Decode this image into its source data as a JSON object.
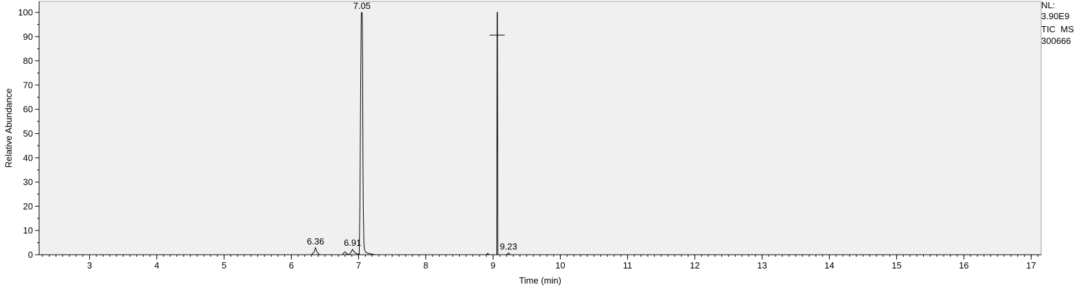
{
  "chart_data": {
    "type": "line",
    "xlabel": "Time (min)",
    "ylabel": "Relative Abundance",
    "xlim": [
      2.25,
      17.15
    ],
    "ylim": [
      0,
      100
    ],
    "xticks": [
      3,
      4,
      5,
      6,
      7,
      8,
      9,
      10,
      11,
      12,
      13,
      14,
      15,
      16,
      17
    ],
    "yticks": [
      0,
      10,
      20,
      30,
      40,
      50,
      60,
      70,
      80,
      90,
      100
    ],
    "grid": false,
    "background_color": "#f0f0f0",
    "line_color": "#000000",
    "series": [
      {
        "x": [
          2.25,
          6.3,
          6.34,
          6.36,
          6.38,
          6.42,
          6.76,
          6.78,
          6.8,
          6.82,
          6.86,
          6.88,
          6.91,
          6.94,
          6.97,
          7.01,
          7.02,
          7.03,
          7.04,
          7.045,
          7.05,
          7.055,
          7.06,
          7.065,
          7.07,
          7.08,
          7.09,
          7.11,
          7.15,
          7.25,
          8.9,
          8.92,
          8.94,
          9.055,
          9.06,
          9.065,
          9.07,
          9.2,
          9.23,
          9.26,
          17.15
        ],
        "y": [
          0,
          0,
          1.2,
          2.9,
          1.2,
          0,
          0,
          0.8,
          1.2,
          0.5,
          0,
          0.7,
          2.2,
          1.0,
          0.4,
          0.3,
          21,
          66,
          99,
          100,
          100,
          99,
          79,
          40,
          20,
          4,
          2,
          1,
          0.5,
          0,
          0,
          0.6,
          0,
          0,
          100,
          100,
          0,
          0,
          0.7,
          0,
          0
        ]
      }
    ],
    "peak_labels": [
      {
        "text": "7.05",
        "x": 7.05,
        "y": 100
      },
      {
        "text": "6.36",
        "x": 6.36,
        "y": 2.9
      },
      {
        "text": "6.91",
        "x": 6.91,
        "y": 2.2
      },
      {
        "text": "9.23",
        "x": 9.23,
        "y": 0.7
      }
    ],
    "cursor_marker": {
      "x": 9.06,
      "y": 90.6
    }
  },
  "side_info": {
    "nl_label": "NL:",
    "nl_value": "3.90E9",
    "trace_type": "TIC  MS",
    "sample_name": "300666"
  }
}
